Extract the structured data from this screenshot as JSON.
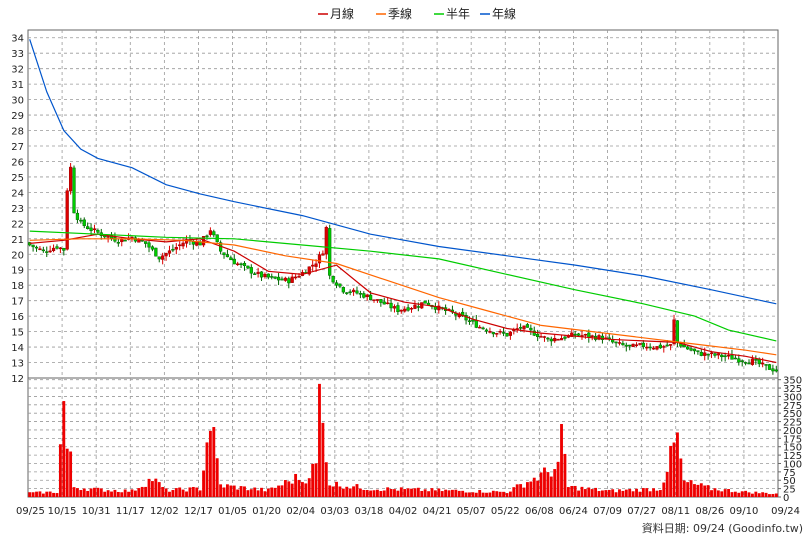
{
  "chart_data": {
    "type": "candlestick",
    "legend": [
      {
        "label": "月線",
        "color": "#cc0000"
      },
      {
        "label": "季線",
        "color": "#ff6600"
      },
      {
        "label": "半年",
        "color": "#00cc00"
      },
      {
        "label": "年線",
        "color": "#0055cc"
      }
    ],
    "colors": {
      "up": "#dd0000",
      "down": "#00cc00",
      "volume": "#ee0000",
      "grid": "#999999"
    },
    "x_tick_labels": [
      "09/25",
      "10/15",
      "10/31",
      "11/17",
      "12/02",
      "12/17",
      "01/05",
      "01/20",
      "02/04",
      "03/03",
      "03/18",
      "04/02",
      "04/21",
      "05/07",
      "05/22",
      "06/08",
      "06/24",
      "07/09",
      "07/27",
      "08/11",
      "08/26",
      "09/10",
      "09/24"
    ],
    "price_axis": {
      "ticks": [
        12,
        13,
        14,
        15,
        16,
        17,
        18,
        19,
        20,
        21,
        22,
        23,
        24,
        25,
        26,
        27,
        28,
        29,
        30,
        31,
        32,
        33,
        34
      ],
      "ylim": [
        12,
        34.5
      ]
    },
    "volume_axis": {
      "ticks": [
        0,
        25,
        50,
        75,
        100,
        125,
        150,
        175,
        200,
        225,
        250,
        275,
        300,
        325,
        350
      ],
      "ylim": [
        0,
        355
      ]
    },
    "close_anchors": [
      [
        0,
        20.6
      ],
      [
        4,
        20.2
      ],
      [
        8,
        20.5
      ],
      [
        10,
        20.3
      ],
      [
        11,
        24.2
      ],
      [
        12,
        25.6
      ],
      [
        13,
        22.8
      ],
      [
        15,
        22.0
      ],
      [
        18,
        21.6
      ],
      [
        22,
        21.2
      ],
      [
        26,
        20.9
      ],
      [
        30,
        21.1
      ],
      [
        34,
        20.7
      ],
      [
        38,
        19.8
      ],
      [
        42,
        20.3
      ],
      [
        46,
        20.9
      ],
      [
        50,
        20.7
      ],
      [
        53,
        21.6
      ],
      [
        56,
        20.2
      ],
      [
        60,
        19.5
      ],
      [
        64,
        19.0
      ],
      [
        68,
        18.6
      ],
      [
        72,
        18.4
      ],
      [
        76,
        18.3
      ],
      [
        80,
        18.8
      ],
      [
        84,
        19.5
      ],
      [
        86,
        20.2
      ],
      [
        87,
        21.7
      ],
      [
        88,
        18.6
      ],
      [
        92,
        17.7
      ],
      [
        96,
        17.5
      ],
      [
        100,
        17.2
      ],
      [
        104,
        16.8
      ],
      [
        108,
        16.4
      ],
      [
        112,
        16.6
      ],
      [
        116,
        16.9
      ],
      [
        120,
        16.5
      ],
      [
        124,
        16.2
      ],
      [
        128,
        15.8
      ],
      [
        132,
        15.3
      ],
      [
        136,
        15.0
      ],
      [
        140,
        14.8
      ],
      [
        144,
        15.3
      ],
      [
        148,
        14.9
      ],
      [
        152,
        14.5
      ],
      [
        156,
        14.6
      ],
      [
        160,
        14.8
      ],
      [
        164,
        14.7
      ],
      [
        168,
        14.6
      ],
      [
        172,
        14.2
      ],
      [
        176,
        14.0
      ],
      [
        180,
        14.1
      ],
      [
        184,
        14.0
      ],
      [
        188,
        14.1
      ],
      [
        189,
        15.7
      ],
      [
        190,
        14.3
      ],
      [
        192,
        14.0
      ],
      [
        196,
        13.6
      ],
      [
        200,
        13.5
      ],
      [
        204,
        13.4
      ],
      [
        208,
        13.2
      ],
      [
        212,
        13.1
      ],
      [
        216,
        12.7
      ],
      [
        219,
        12.5
      ]
    ],
    "moving_averages": {
      "月線": [
        [
          0,
          20.7
        ],
        [
          10,
          20.9
        ],
        [
          20,
          21.3
        ],
        [
          30,
          21.0
        ],
        [
          40,
          20.8
        ],
        [
          50,
          21.0
        ],
        [
          60,
          20.2
        ],
        [
          70,
          18.9
        ],
        [
          80,
          18.7
        ],
        [
          90,
          19.3
        ],
        [
          100,
          17.5
        ],
        [
          110,
          16.9
        ],
        [
          120,
          16.6
        ],
        [
          130,
          15.8
        ],
        [
          140,
          15.2
        ],
        [
          150,
          14.9
        ],
        [
          160,
          14.7
        ],
        [
          170,
          14.5
        ],
        [
          180,
          14.4
        ],
        [
          190,
          14.3
        ],
        [
          200,
          13.7
        ],
        [
          210,
          13.4
        ],
        [
          219,
          13.0
        ]
      ],
      "季線": [
        [
          0,
          20.9
        ],
        [
          15,
          21.0
        ],
        [
          30,
          21.0
        ],
        [
          45,
          20.9
        ],
        [
          60,
          20.6
        ],
        [
          75,
          19.9
        ],
        [
          90,
          19.4
        ],
        [
          105,
          18.3
        ],
        [
          120,
          17.2
        ],
        [
          135,
          16.3
        ],
        [
          150,
          15.4
        ],
        [
          165,
          15.0
        ],
        [
          180,
          14.6
        ],
        [
          195,
          14.2
        ],
        [
          210,
          13.8
        ],
        [
          219,
          13.5
        ]
      ],
      "半年": [
        [
          0,
          21.5
        ],
        [
          20,
          21.3
        ],
        [
          40,
          21.1
        ],
        [
          60,
          21.0
        ],
        [
          80,
          20.6
        ],
        [
          100,
          20.2
        ],
        [
          120,
          19.7
        ],
        [
          140,
          18.7
        ],
        [
          160,
          17.7
        ],
        [
          180,
          16.8
        ],
        [
          195,
          16.0
        ],
        [
          205,
          15.1
        ],
        [
          219,
          14.4
        ]
      ],
      "年線": [
        [
          0,
          33.9
        ],
        [
          5,
          30.5
        ],
        [
          10,
          28.0
        ],
        [
          15,
          26.8
        ],
        [
          20,
          26.2
        ],
        [
          30,
          25.6
        ],
        [
          40,
          24.5
        ],
        [
          50,
          23.9
        ],
        [
          60,
          23.4
        ],
        [
          80,
          22.5
        ],
        [
          100,
          21.3
        ],
        [
          120,
          20.5
        ],
        [
          140,
          19.9
        ],
        [
          160,
          19.3
        ],
        [
          180,
          18.6
        ],
        [
          200,
          17.7
        ],
        [
          219,
          16.8
        ]
      ]
    },
    "volume_anchors": [
      [
        0,
        12
      ],
      [
        8,
        15
      ],
      [
        9,
        150
      ],
      [
        10,
        280
      ],
      [
        11,
        140
      ],
      [
        12,
        110
      ],
      [
        13,
        30
      ],
      [
        20,
        22
      ],
      [
        30,
        18
      ],
      [
        36,
        55
      ],
      [
        40,
        20
      ],
      [
        50,
        25
      ],
      [
        53,
        230
      ],
      [
        54,
        170
      ],
      [
        56,
        35
      ],
      [
        60,
        30
      ],
      [
        70,
        20
      ],
      [
        79,
        60
      ],
      [
        80,
        45
      ],
      [
        84,
        95
      ],
      [
        85,
        300
      ],
      [
        86,
        210
      ],
      [
        87,
        140
      ],
      [
        88,
        40
      ],
      [
        100,
        25
      ],
      [
        120,
        20
      ],
      [
        140,
        15
      ],
      [
        155,
        90
      ],
      [
        156,
        170
      ],
      [
        157,
        120
      ],
      [
        158,
        30
      ],
      [
        170,
        18
      ],
      [
        185,
        25
      ],
      [
        190,
        180
      ],
      [
        191,
        100
      ],
      [
        192,
        45
      ],
      [
        200,
        25
      ],
      [
        210,
        15
      ],
      [
        219,
        10
      ]
    ]
  },
  "credit": "資料日期: 09/24  (Goodinfo.tw)"
}
